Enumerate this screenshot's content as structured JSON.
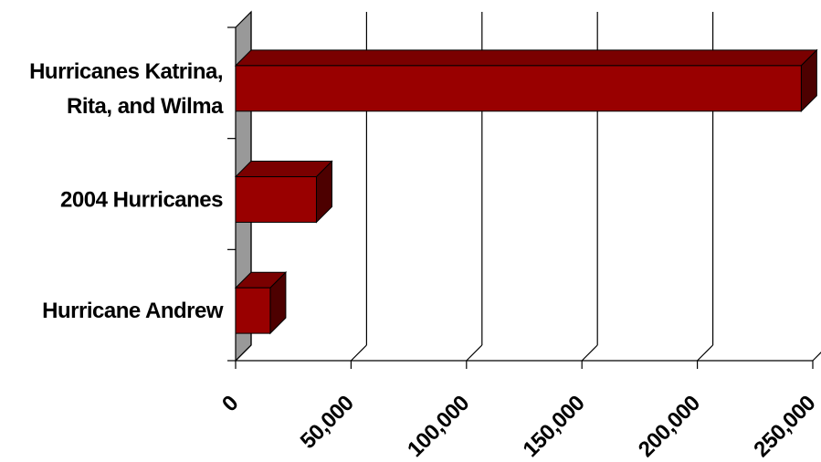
{
  "chart_data": {
    "type": "bar",
    "orientation": "horizontal",
    "three_d": true,
    "categories": [
      "Hurricanes Katrina, Rita, and Wilma",
      "2004 Hurricanes",
      "Hurricane Andrew"
    ],
    "category_label_lines": [
      [
        "Hurricanes Katrina,",
        "Rita, and Wilma"
      ],
      [
        "2004 Hurricanes"
      ],
      [
        "Hurricane Andrew"
      ]
    ],
    "values": [
      245000,
      35000,
      15000
    ],
    "xlim": [
      0,
      250000
    ],
    "xticks": [
      0,
      50000,
      100000,
      150000,
      200000,
      250000
    ],
    "xtick_labels": [
      "0",
      "50,000",
      "100,000",
      "150,000",
      "200,000",
      "250,000"
    ],
    "title": "",
    "xlabel": "",
    "ylabel": "",
    "grid": "vertical gridlines",
    "legend": "none",
    "colors": {
      "bar_front": "#990000",
      "bar_top": "#7a0000",
      "bar_side": "#4d0000",
      "side_wall": "#999999",
      "grid": "#000000"
    }
  }
}
